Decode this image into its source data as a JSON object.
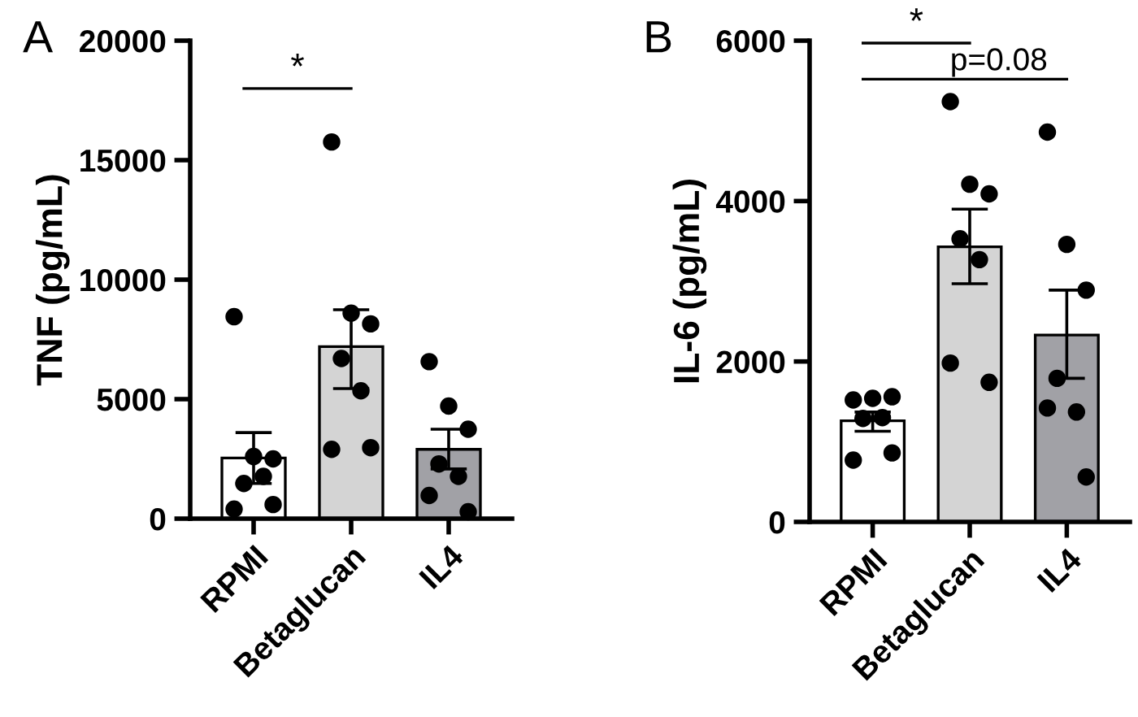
{
  "chart_data": [
    {
      "type": "bar",
      "ylabel": "TNF (pg/mL)",
      "categories": [
        "RPMI",
        "Betaglucan",
        "IL4"
      ],
      "ylim": [
        0,
        20000
      ],
      "yticks": [
        0,
        5000,
        10000,
        15000,
        20000
      ],
      "grid": false,
      "legend": false,
      "annotations": [
        "A",
        "*"
      ],
      "series": [
        {
          "type": "bar",
          "colors": [
            "#ffffff",
            "#d4d4d4",
            "#a1a1a6"
          ],
          "values": [
            2540,
            7200,
            2900
          ],
          "errors": [
            [
              1470,
              3600
            ],
            [
              5440,
              8740
            ],
            [
              2080,
              3740
            ]
          ]
        },
        {
          "type": "scatter",
          "color": "#000000",
          "x": [
            "RPMI",
            "RPMI",
            "RPMI",
            "RPMI",
            "RPMI",
            "RPMI",
            "RPMI",
            "Betaglucan",
            "Betaglucan",
            "Betaglucan",
            "Betaglucan",
            "Betaglucan",
            "Betaglucan",
            "Betaglucan",
            "IL4",
            "IL4",
            "IL4",
            "IL4",
            "IL4",
            "IL4",
            "IL4"
          ],
          "values": [
            8450,
            2600,
            2500,
            1470,
            1770,
            400,
            590,
            15760,
            8600,
            8150,
            6700,
            5350,
            2900,
            2970,
            6570,
            4710,
            3740,
            2290,
            1770,
            970,
            290
          ]
        }
      ]
    },
    {
      "type": "bar",
      "ylabel": "IL-6 (pg/mL)",
      "categories": [
        "RPMI",
        "Betaglucan",
        "IL4"
      ],
      "ylim": [
        0,
        6000
      ],
      "yticks": [
        0,
        2000,
        4000,
        6000
      ],
      "grid": false,
      "legend": false,
      "annotations": [
        "B",
        "*",
        "p=0.08"
      ],
      "series": [
        {
          "type": "bar",
          "colors": [
            "#ffffff",
            "#d4d4d4",
            "#a1a1a6"
          ],
          "values": [
            1260,
            3430,
            2330
          ],
          "errors": [
            [
              1130,
              1370
            ],
            [
              2970,
              3900
            ],
            [
              1790,
              2890
            ]
          ]
        },
        {
          "type": "scatter",
          "color": "#000000",
          "x": [
            "RPMI",
            "RPMI",
            "RPMI",
            "RPMI",
            "RPMI",
            "RPMI",
            "RPMI",
            "Betaglucan",
            "Betaglucan",
            "Betaglucan",
            "Betaglucan",
            "Betaglucan",
            "Betaglucan",
            "Betaglucan",
            "IL4",
            "IL4",
            "IL4",
            "IL4",
            "IL4",
            "IL4",
            "IL4"
          ],
          "values": [
            1520,
            1540,
            1560,
            1290,
            1300,
            770,
            860,
            5240,
            4210,
            4090,
            3530,
            3270,
            1980,
            1740,
            4860,
            3460,
            2890,
            1790,
            1370,
            1420,
            560
          ]
        }
      ]
    }
  ]
}
